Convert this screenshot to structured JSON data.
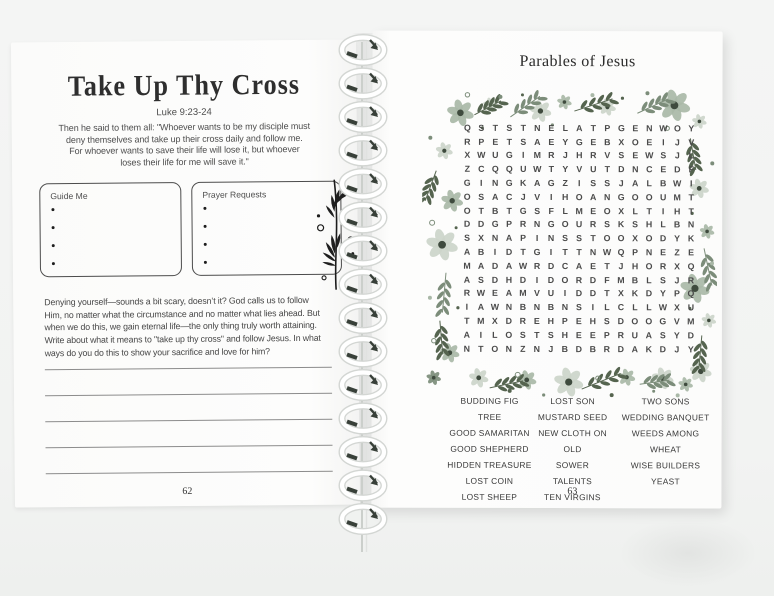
{
  "left_page": {
    "title": "Take Up Thy Cross",
    "reference": "Luke 9:23-24",
    "passage_lines": [
      "Then he said to them all: \"Whoever wants to be my disciple must",
      "deny themselves and take up their cross daily and follow me.",
      "For whoever wants to save their life will lose it, but whoever",
      "loses their life for me will save it.\""
    ],
    "boxes": [
      {
        "label": "Guide Me",
        "bullet_count": 4
      },
      {
        "label": "Prayer Requests",
        "bullet_count": 4
      }
    ],
    "prompt_lines": [
      "Denying yourself—sounds a bit scary, doesn’t it? God calls us to follow",
      "Him, no matter what the circumstance and no matter what lies ahead. But",
      "when we do this, we gain eternal life—the only thing truly worth attaining.",
      "Write about what it means to \"take up thy cross\" and follow Jesus. In what",
      "ways do you do this to show your sacrifice and love for him?"
    ],
    "writing_line_count": 5,
    "page_number": "62"
  },
  "right_page": {
    "title": "Parables of Jesus",
    "word_search": {
      "grid": [
        "QSTSTNELATPGENWOY",
        "RPETSAEYGEBXOEIJV",
        "XWUGIMRJHRVSEWSJL",
        "ZCQQUWTYVUTDNCEDF",
        "GINGKAGZISSJALBWI",
        "OSACJVIHOANGOOUMT",
        "OTBTGSFLMEOXLTIHT",
        "DDGPRNGOURSKSHLBN",
        "SXNAPINSSTOOXODYK",
        "ABIDTGITTNWQPNEZE",
        "MADAWRDCAETJHORXQ",
        "ASDHDIDORDFMBLSJR",
        "RWEAMVUIDDTXKDYPQ",
        "IAWNBNBNSILCLLWXU",
        "TMXDREHPEHSDOOGVM",
        "AILOSTSHEEPRUASYD",
        "NTONZNJBDBRDAKDJY"
      ],
      "word_columns": [
        [
          "BUDDING FIG TREE",
          "GOOD SAMARITAN",
          "GOOD SHEPHERD",
          "HIDDEN TREASURE",
          "LOST COIN",
          "LOST SHEEP"
        ],
        [
          "LOST SON",
          "MUSTARD SEED",
          "NEW CLOTH ON OLD",
          "SOWER",
          "TALENTS",
          "TEN VIRGINS"
        ],
        [
          "TWO SONS",
          "WEDDING BANQUET",
          "WEEDS AMONG WHEAT",
          "WISE BUILDERS",
          "YEAST"
        ]
      ]
    },
    "page_number": "63"
  },
  "book": {
    "spiral_coil_count": 15
  },
  "palette": {
    "floral_pale": "#ccd5ca",
    "floral_mid": "#a9b8a7",
    "floral_deep": "#7c8d7a",
    "floral_dark": "#55644f",
    "floral_center": "#3f4b3e",
    "ink": "#3f3f3f",
    "paper": "#fdfdfc",
    "background": "#f2f3f2"
  }
}
